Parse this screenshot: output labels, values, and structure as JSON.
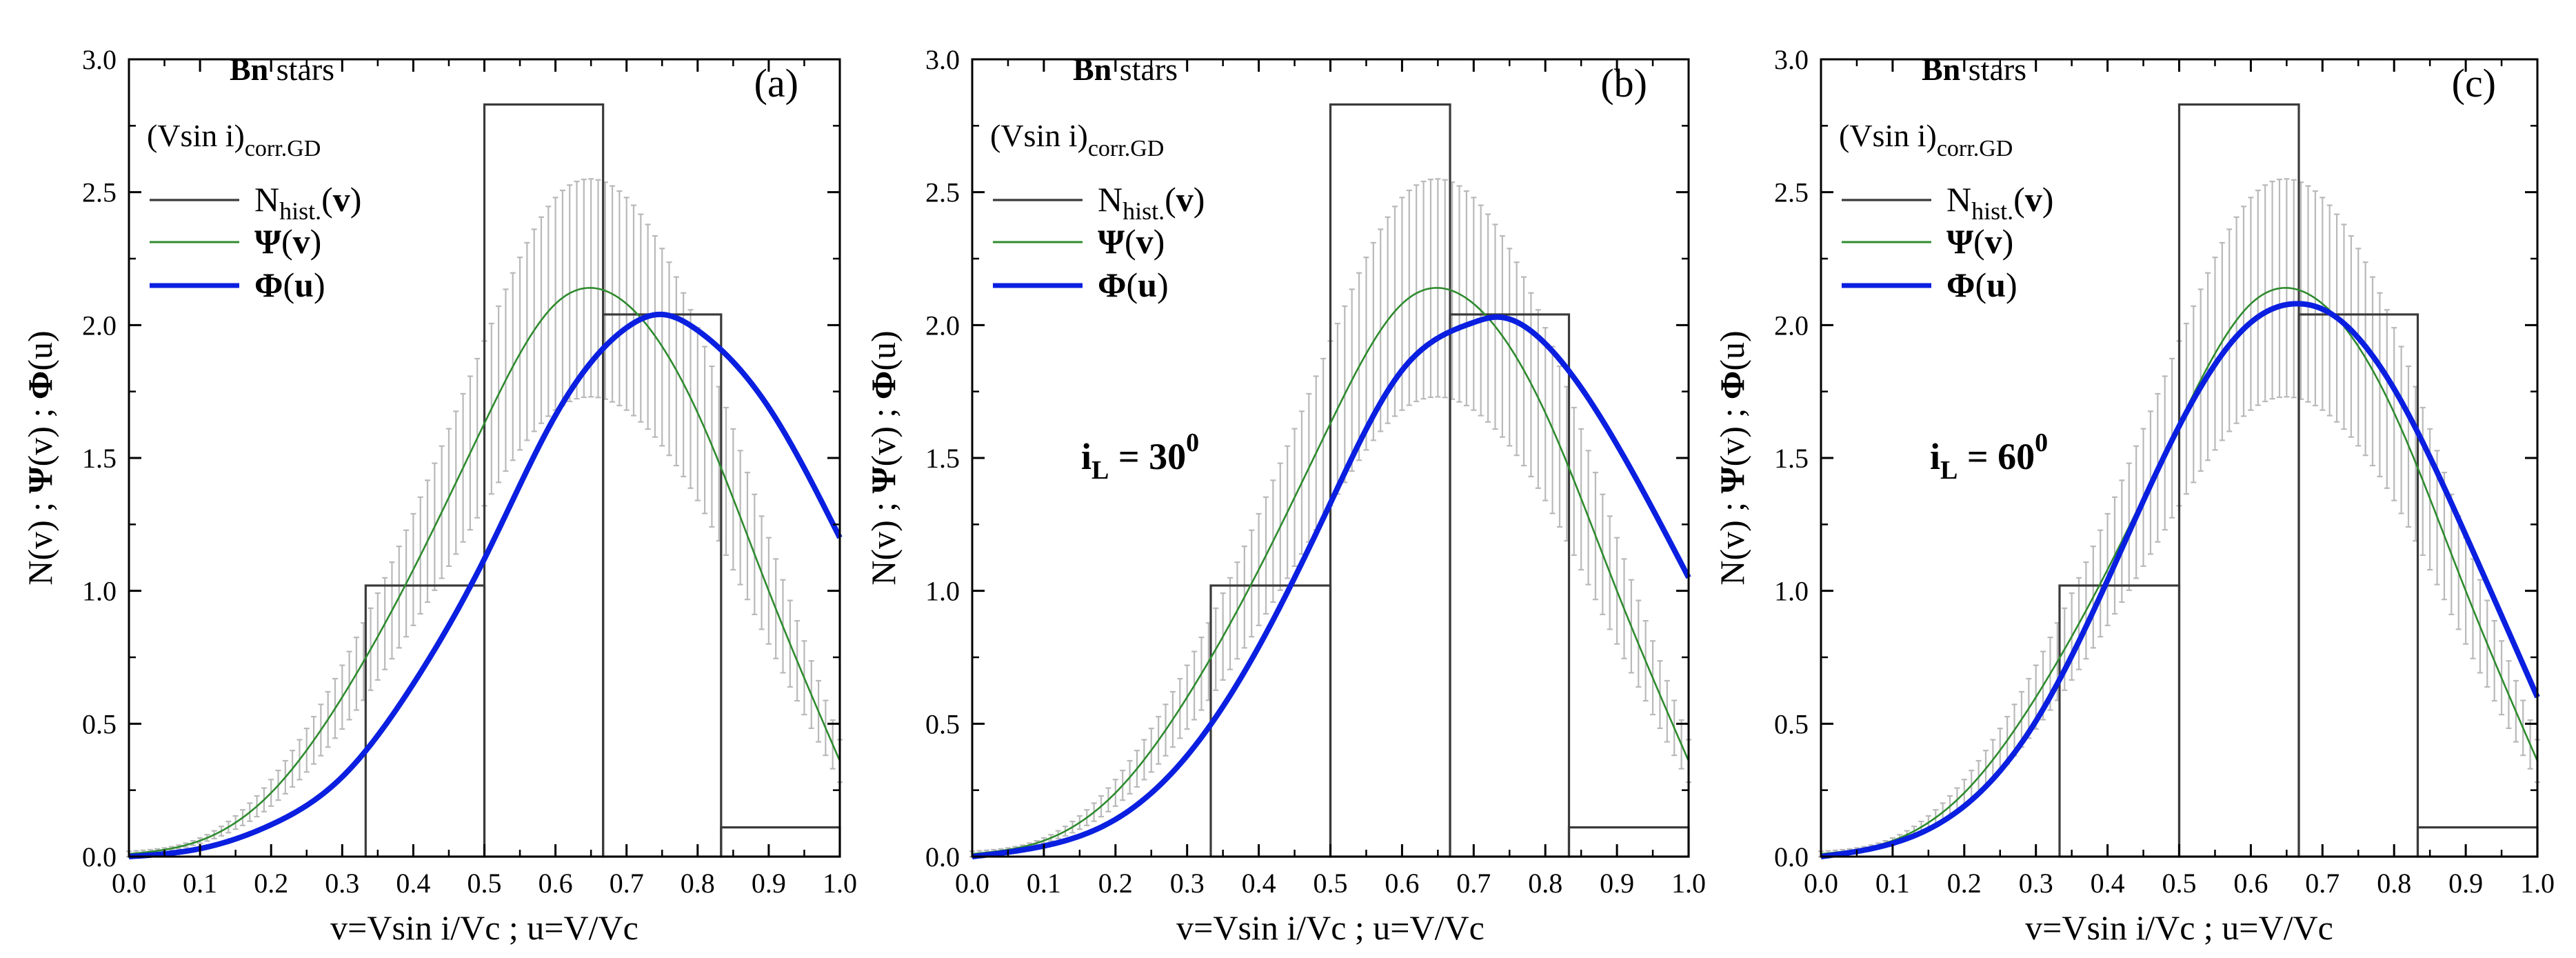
{
  "figure": {
    "header": {
      "bold_part": "Bn",
      "rest": " stars",
      "vsini_main": "(Vsin i)",
      "vsini_sub": "corr.GD"
    },
    "legend": {
      "hist": {
        "main": "N",
        "sub": "hist.",
        "arg_open": "(",
        "arg": "v",
        "arg_close": ")"
      },
      "psi": {
        "symbol": "Ψ",
        "arg_open": "(",
        "arg": "v",
        "arg_close": ")"
      },
      "phi": {
        "symbol": "Φ",
        "arg_open": "(",
        "arg": "u",
        "arg_close": ")"
      }
    },
    "xlabel": "v=Vsin i/Vc ; u=V/Vc",
    "ylabel": {
      "p1": "N(v) ; ",
      "psi": "Ψ",
      "p2": "(v) ; ",
      "phi": "Φ",
      "p3": "(u)"
    }
  },
  "colors": {
    "hist": "#3a3a3a",
    "psi": "#2e8b2e",
    "phi": "#0a1fe0",
    "errorbar": "#b9b9b9"
  },
  "chart_data": [
    {
      "type": "line",
      "panel": "a",
      "tag": "(a)",
      "annotation": null,
      "xlim": [
        0,
        1.0
      ],
      "ylim": [
        0,
        3.0
      ],
      "xticks": [
        "0.0",
        "0.1",
        "0.2",
        "0.3",
        "0.4",
        "0.5",
        "0.6",
        "0.7",
        "0.8",
        "0.9",
        "1.0"
      ],
      "yticks": [
        "0.0",
        "0.5",
        "1.0",
        "1.5",
        "2.0",
        "2.5",
        "3.0"
      ],
      "histogram": {
        "edges": [
          0.0,
          0.333,
          0.5,
          0.667,
          0.833,
          1.0
        ],
        "values": [
          0.0,
          1.02,
          2.83,
          2.04,
          0.11
        ]
      },
      "psi": {
        "name": "Ψ(v)",
        "x": [
          0.0,
          0.1,
          0.2,
          0.3,
          0.4,
          0.5,
          0.6,
          0.65,
          0.7,
          0.8,
          0.9,
          1.0
        ],
        "y": [
          0.01,
          0.06,
          0.24,
          0.6,
          1.08,
          1.63,
          2.08,
          2.14,
          2.08,
          1.67,
          1.0,
          0.36
        ],
        "err_lo": [
          0.0,
          0.05,
          0.19,
          0.48,
          0.87,
          1.32,
          1.68,
          1.73,
          1.68,
          1.34,
          0.8,
          0.28
        ],
        "err_hi": [
          0.02,
          0.07,
          0.29,
          0.72,
          1.29,
          1.94,
          2.48,
          2.55,
          2.48,
          1.99,
          1.2,
          0.44
        ]
      },
      "phi": {
        "name": "Φ(u)",
        "x": [
          0.0,
          0.1,
          0.2,
          0.3,
          0.4,
          0.5,
          0.6,
          0.7,
          0.75,
          0.8,
          0.9,
          1.0
        ],
        "y": [
          0.0,
          0.03,
          0.12,
          0.3,
          0.65,
          1.12,
          1.66,
          1.99,
          2.04,
          1.98,
          1.69,
          1.2
        ]
      }
    },
    {
      "type": "line",
      "panel": "b",
      "tag": "(b)",
      "annotation": {
        "main": "i",
        "sub": "L",
        "eq": " = 30",
        "sup": "0"
      },
      "xlim": [
        0,
        1.0
      ],
      "ylim": [
        0,
        3.0
      ],
      "xticks": [
        "0.0",
        "0.1",
        "0.2",
        "0.3",
        "0.4",
        "0.5",
        "0.6",
        "0.7",
        "0.8",
        "0.9",
        "1.0"
      ],
      "yticks": [
        "0.0",
        "0.5",
        "1.0",
        "1.5",
        "2.0",
        "2.5",
        "3.0"
      ],
      "histogram": {
        "edges": [
          0.0,
          0.333,
          0.5,
          0.667,
          0.833,
          1.0
        ],
        "values": [
          0.0,
          1.02,
          2.83,
          2.04,
          0.11
        ]
      },
      "psi": {
        "name": "Ψ(v)",
        "x": [
          0.0,
          0.1,
          0.2,
          0.3,
          0.4,
          0.5,
          0.6,
          0.65,
          0.7,
          0.8,
          0.9,
          1.0
        ],
        "y": [
          0.01,
          0.06,
          0.24,
          0.6,
          1.08,
          1.63,
          2.08,
          2.14,
          2.08,
          1.67,
          1.0,
          0.36
        ],
        "err_lo": [
          0.0,
          0.05,
          0.19,
          0.48,
          0.87,
          1.32,
          1.68,
          1.73,
          1.68,
          1.34,
          0.8,
          0.28
        ],
        "err_hi": [
          0.02,
          0.07,
          0.29,
          0.72,
          1.29,
          1.94,
          2.48,
          2.55,
          2.48,
          1.99,
          1.2,
          0.44
        ]
      },
      "phi": {
        "name": "Φ(u)",
        "x": [
          0.0,
          0.1,
          0.2,
          0.3,
          0.4,
          0.5,
          0.6,
          0.7,
          0.73,
          0.8,
          0.9,
          1.0
        ],
        "y": [
          0.0,
          0.04,
          0.14,
          0.38,
          0.79,
          1.33,
          1.83,
          2.01,
          2.03,
          1.93,
          1.55,
          1.05
        ]
      }
    },
    {
      "type": "line",
      "panel": "c",
      "tag": "(c)",
      "annotation": {
        "main": "i",
        "sub": "L",
        "eq": " = 60",
        "sup": "0"
      },
      "xlim": [
        0,
        1.0
      ],
      "ylim": [
        0,
        3.0
      ],
      "xticks": [
        "0.0",
        "0.1",
        "0.2",
        "0.3",
        "0.4",
        "0.5",
        "0.6",
        "0.7",
        "0.8",
        "0.9",
        "1.0"
      ],
      "yticks": [
        "0.0",
        "0.5",
        "1.0",
        "1.5",
        "2.0",
        "2.5",
        "3.0"
      ],
      "histogram": {
        "edges": [
          0.0,
          0.333,
          0.5,
          0.667,
          0.833,
          1.0
        ],
        "values": [
          0.0,
          1.02,
          2.83,
          2.04,
          0.11
        ]
      },
      "psi": {
        "name": "Ψ(v)",
        "x": [
          0.0,
          0.1,
          0.2,
          0.3,
          0.4,
          0.5,
          0.6,
          0.65,
          0.7,
          0.8,
          0.9,
          1.0
        ],
        "y": [
          0.01,
          0.06,
          0.24,
          0.6,
          1.08,
          1.63,
          2.08,
          2.14,
          2.08,
          1.67,
          1.0,
          0.36
        ],
        "err_lo": [
          0.0,
          0.05,
          0.19,
          0.48,
          0.87,
          1.32,
          1.68,
          1.73,
          1.68,
          1.34,
          0.8,
          0.28
        ],
        "err_hi": [
          0.02,
          0.07,
          0.29,
          0.72,
          1.29,
          1.94,
          2.48,
          2.55,
          2.48,
          1.99,
          1.2,
          0.44
        ]
      },
      "phi": {
        "name": "Φ(u)",
        "x": [
          0.0,
          0.1,
          0.2,
          0.3,
          0.4,
          0.5,
          0.6,
          0.67,
          0.7,
          0.8,
          0.9,
          1.0
        ],
        "y": [
          0.0,
          0.05,
          0.19,
          0.51,
          1.04,
          1.62,
          2.01,
          2.08,
          2.06,
          1.76,
          1.21,
          0.6
        ]
      }
    }
  ]
}
